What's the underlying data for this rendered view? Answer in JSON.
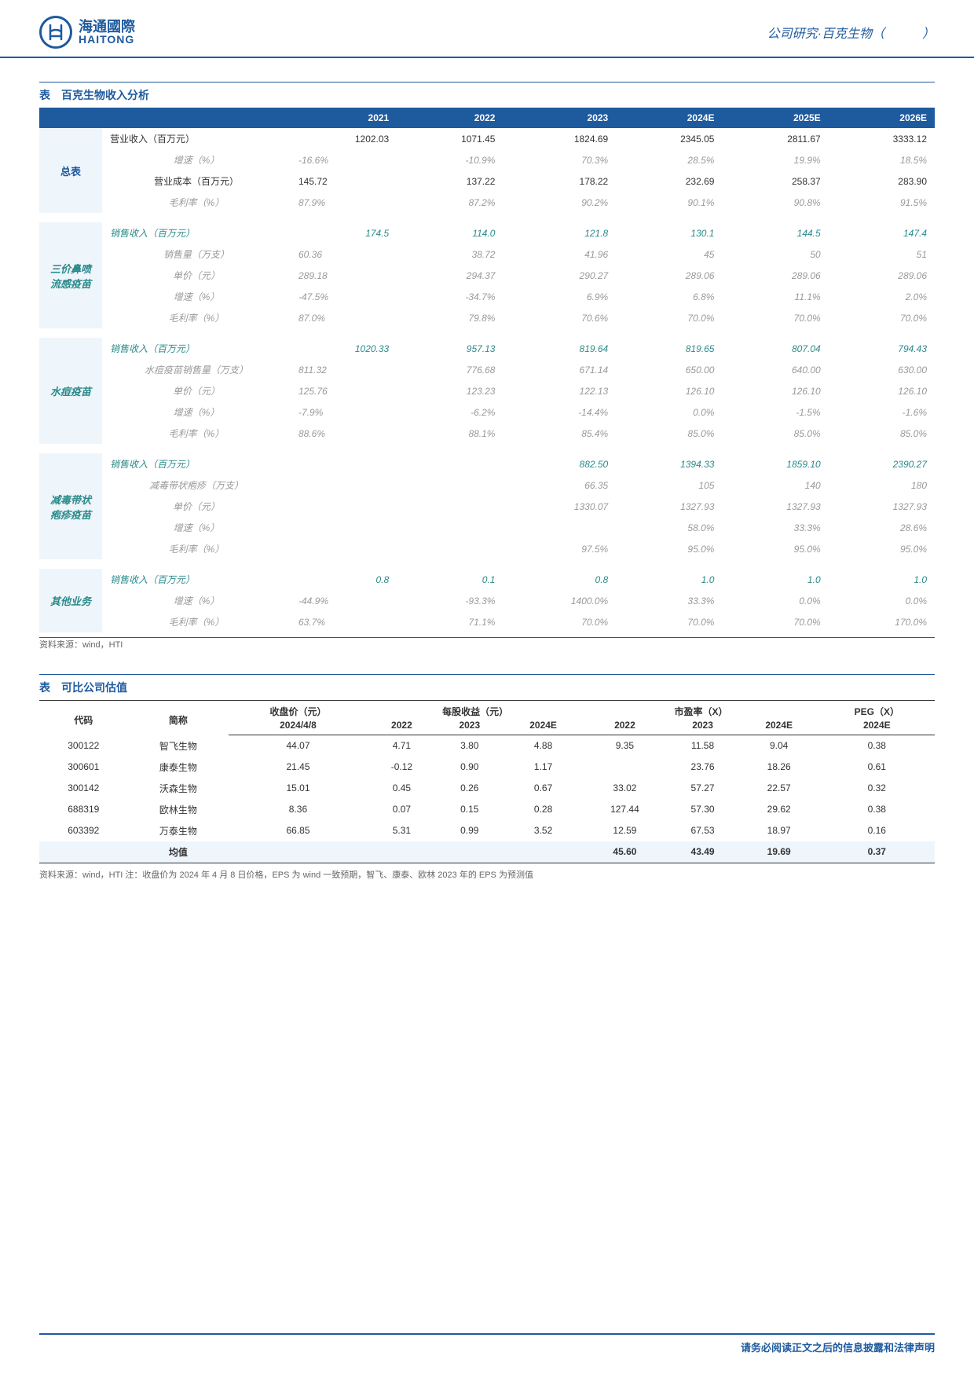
{
  "header": {
    "logo_cn": "海通國際",
    "logo_en": "HAITONG",
    "right_text": "公司研究·百克生物（　　　）"
  },
  "table1": {
    "title": "表　百克生物收入分析",
    "columns": [
      "",
      "",
      "2021",
      "2022",
      "2023",
      "2024E",
      "2025E",
      "2026E"
    ],
    "sections": [
      {
        "category": "总表",
        "rows": [
          {
            "label": "营业收入（百万元）",
            "vals": [
              "1202.03",
              "1071.45",
              "1824.69",
              "2345.05",
              "2811.67",
              "3333.12"
            ],
            "style": "normal"
          },
          {
            "label": "增速（%）",
            "vals": [
              "-16.6%",
              "-10.9%",
              "70.3%",
              "28.5%",
              "19.9%",
              "18.5%"
            ],
            "style": "gray"
          },
          {
            "label": "营业成本（百万元）",
            "vals": [
              "145.72",
              "137.22",
              "178.22",
              "232.69",
              "258.37",
              "283.90"
            ],
            "style": "normal"
          },
          {
            "label": "毛利率（%）",
            "vals": [
              "87.9%",
              "87.2%",
              "90.2%",
              "90.1%",
              "90.8%",
              "91.5%"
            ],
            "style": "gray"
          }
        ]
      },
      {
        "category": "三价鼻喷流感疫苗",
        "rows": [
          {
            "label": "销售收入（百万元）",
            "vals": [
              "174.5",
              "114.0",
              "121.8",
              "130.1",
              "144.5",
              "147.4"
            ],
            "style": "teal"
          },
          {
            "label": "销售量（万支）",
            "vals": [
              "60.36",
              "38.72",
              "41.96",
              "45",
              "50",
              "51"
            ],
            "style": "gray"
          },
          {
            "label": "单价（元）",
            "vals": [
              "289.18",
              "294.37",
              "290.27",
              "289.06",
              "289.06",
              "289.06"
            ],
            "style": "gray"
          },
          {
            "label": "增速（%）",
            "vals": [
              "-47.5%",
              "-34.7%",
              "6.9%",
              "6.8%",
              "11.1%",
              "2.0%"
            ],
            "style": "gray"
          },
          {
            "label": "毛利率（%）",
            "vals": [
              "87.0%",
              "79.8%",
              "70.6%",
              "70.0%",
              "70.0%",
              "70.0%"
            ],
            "style": "gray"
          }
        ]
      },
      {
        "category": "水痘疫苗",
        "rows": [
          {
            "label": "销售收入（百万元）",
            "vals": [
              "1020.33",
              "957.13",
              "819.64",
              "819.65",
              "807.04",
              "794.43"
            ],
            "style": "teal"
          },
          {
            "label": "水痘疫苗销售量（万支）",
            "vals": [
              "811.32",
              "776.68",
              "671.14",
              "650.00",
              "640.00",
              "630.00"
            ],
            "style": "gray"
          },
          {
            "label": "单价（元）",
            "vals": [
              "125.76",
              "123.23",
              "122.13",
              "126.10",
              "126.10",
              "126.10"
            ],
            "style": "gray"
          },
          {
            "label": "增速（%）",
            "vals": [
              "-7.9%",
              "-6.2%",
              "-14.4%",
              "0.0%",
              "-1.5%",
              "-1.6%"
            ],
            "style": "gray"
          },
          {
            "label": "毛利率（%）",
            "vals": [
              "88.6%",
              "88.1%",
              "85.4%",
              "85.0%",
              "85.0%",
              "85.0%"
            ],
            "style": "gray"
          }
        ]
      },
      {
        "category": "减毒带状疱疹疫苗",
        "rows": [
          {
            "label": "销售收入（百万元）",
            "vals": [
              "",
              "",
              "882.50",
              "1394.33",
              "1859.10",
              "2390.27"
            ],
            "style": "teal"
          },
          {
            "label": "减毒带状疱疹（万支）",
            "vals": [
              "",
              "",
              "66.35",
              "105",
              "140",
              "180"
            ],
            "style": "gray"
          },
          {
            "label": "单价（元）",
            "vals": [
              "",
              "",
              "1330.07",
              "1327.93",
              "1327.93",
              "1327.93"
            ],
            "style": "gray"
          },
          {
            "label": "增速（%）",
            "vals": [
              "",
              "",
              "",
              "58.0%",
              "33.3%",
              "28.6%"
            ],
            "style": "gray"
          },
          {
            "label": "毛利率（%）",
            "vals": [
              "",
              "",
              "97.5%",
              "95.0%",
              "95.0%",
              "95.0%"
            ],
            "style": "gray"
          }
        ]
      },
      {
        "category": "其他业务",
        "rows": [
          {
            "label": "销售收入（百万元）",
            "vals": [
              "0.8",
              "0.1",
              "0.8",
              "1.0",
              "1.0",
              "1.0"
            ],
            "style": "teal"
          },
          {
            "label": "增速（%）",
            "vals": [
              "-44.9%",
              "-93.3%",
              "1400.0%",
              "33.3%",
              "0.0%",
              "0.0%"
            ],
            "style": "gray"
          },
          {
            "label": "毛利率（%）",
            "vals": [
              "63.7%",
              "71.1%",
              "70.0%",
              "70.0%",
              "70.0%",
              "170.0%"
            ],
            "style": "gray"
          }
        ]
      }
    ],
    "source": "资料来源：wind，HTI"
  },
  "table2": {
    "title": "表　可比公司估值",
    "header1": [
      "代码",
      "简称",
      "收盘价（元）",
      "每股收益（元）",
      "",
      "",
      "市盈率（X）",
      "",
      "",
      "PEG（X）"
    ],
    "header2": [
      "",
      "",
      "2024/4/8",
      "2022",
      "2023",
      "2024E",
      "2022",
      "2023",
      "2024E",
      "2024E"
    ],
    "rows": [
      [
        "300122",
        "智飞生物",
        "44.07",
        "4.71",
        "3.80",
        "4.88",
        "9.35",
        "11.58",
        "9.04",
        "0.38"
      ],
      [
        "300601",
        "康泰生物",
        "21.45",
        "-0.12",
        "0.90",
        "1.17",
        "",
        "23.76",
        "18.26",
        "0.61"
      ],
      [
        "300142",
        "沃森生物",
        "15.01",
        "0.45",
        "0.26",
        "0.67",
        "33.02",
        "57.27",
        "22.57",
        "0.32"
      ],
      [
        "688319",
        "欧林生物",
        "8.36",
        "0.07",
        "0.15",
        "0.28",
        "127.44",
        "57.30",
        "29.62",
        "0.38"
      ],
      [
        "603392",
        "万泰生物",
        "66.85",
        "5.31",
        "0.99",
        "3.52",
        "12.59",
        "67.53",
        "18.97",
        "0.16"
      ]
    ],
    "avg_row": [
      "",
      "均值",
      "",
      "",
      "",
      "",
      "45.60",
      "43.49",
      "19.69",
      "0.37"
    ],
    "source": "资料来源：wind，HTI  注：收盘价为 2024 年 4 月 8 日价格，EPS 为 wind 一致预期，智飞、康泰、欧林 2023 年的 EPS 为预测值"
  },
  "footer": "请务必阅读正文之后的信息披露和法律声明"
}
